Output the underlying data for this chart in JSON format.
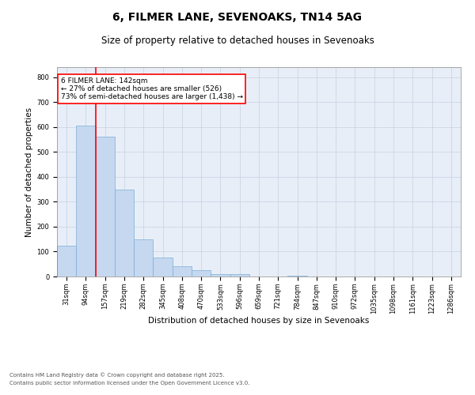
{
  "title_line1": "6, FILMER LANE, SEVENOAKS, TN14 5AG",
  "title_line2": "Size of property relative to detached houses in Sevenoaks",
  "xlabel": "Distribution of detached houses by size in Sevenoaks",
  "ylabel": "Number of detached properties",
  "bar_color": "#c5d8f0",
  "bar_edge_color": "#7badd4",
  "bar_edge_width": 0.5,
  "categories": [
    "31sqm",
    "94sqm",
    "157sqm",
    "219sqm",
    "282sqm",
    "345sqm",
    "408sqm",
    "470sqm",
    "533sqm",
    "596sqm",
    "659sqm",
    "721sqm",
    "784sqm",
    "847sqm",
    "910sqm",
    "972sqm",
    "1035sqm",
    "1098sqm",
    "1161sqm",
    "1223sqm",
    "1286sqm"
  ],
  "values": [
    125,
    605,
    560,
    350,
    150,
    75,
    40,
    25,
    10,
    8,
    0,
    0,
    3,
    0,
    0,
    0,
    0,
    0,
    0,
    0,
    0
  ],
  "red_line_index": 2,
  "ylim": [
    0,
    840
  ],
  "yticks": [
    0,
    100,
    200,
    300,
    400,
    500,
    600,
    700,
    800
  ],
  "annotation_text": "6 FILMER LANE: 142sqm\n← 27% of detached houses are smaller (526)\n73% of semi-detached houses are larger (1,438) →",
  "grid_color": "#c8d0e0",
  "background_color": "#e8eef8",
  "footer_line1": "Contains HM Land Registry data © Crown copyright and database right 2025.",
  "footer_line2": "Contains public sector information licensed under the Open Government Licence v3.0.",
  "title_fontsize": 10,
  "subtitle_fontsize": 8.5,
  "tick_fontsize": 6,
  "label_fontsize": 7.5,
  "annotation_fontsize": 6.5,
  "footer_fontsize": 5
}
